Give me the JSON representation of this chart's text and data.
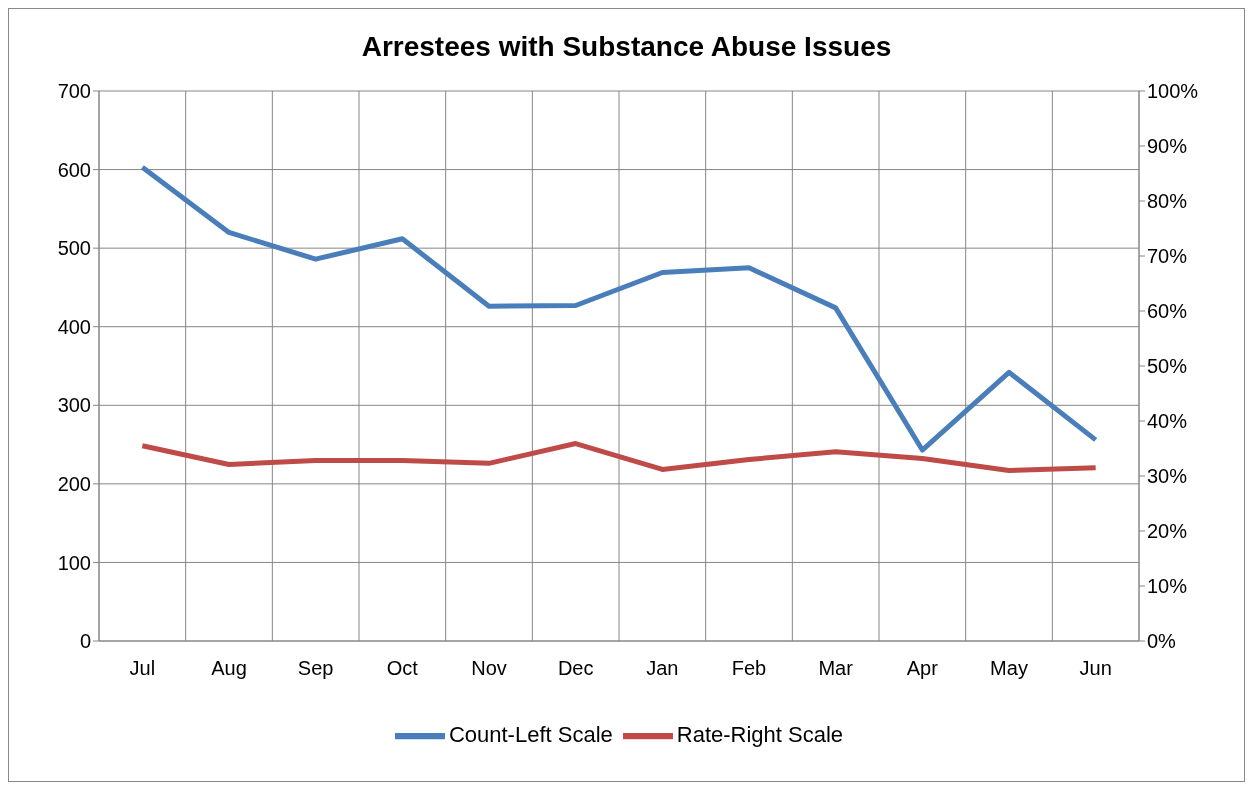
{
  "chart_data": {
    "type": "line",
    "title": "Arrestees with Substance Abuse Issues",
    "categories": [
      "Jul",
      "Aug",
      "Sep",
      "Oct",
      "Nov",
      "Dec",
      "Jan",
      "Feb",
      "Mar",
      "Apr",
      "May",
      "Jun"
    ],
    "series": [
      {
        "name": "Count-Left Scale",
        "color": "#4a7ebb",
        "values": [
          603,
          520,
          486,
          512,
          426,
          427,
          469,
          475,
          424,
          243,
          342,
          256
        ]
      },
      {
        "name": "Rate-Right Scale",
        "color": "#be4b48",
        "axis": "y2",
        "values": [
          35.5,
          32.1,
          32.8,
          32.8,
          32.3,
          35.9,
          31.2,
          33.0,
          34.4,
          33.2,
          31.0,
          31.5
        ]
      }
    ],
    "ylim": [
      0,
      700
    ],
    "yticks": [
      0,
      100,
      200,
      300,
      400,
      500,
      600,
      700
    ],
    "y2lim": [
      0,
      100
    ],
    "y2ticks": [
      {
        "value": 0,
        "label": "0%"
      },
      {
        "value": 10,
        "label": "10%"
      },
      {
        "value": 20,
        "label": "20%"
      },
      {
        "value": 30,
        "label": "30%"
      },
      {
        "value": 40,
        "label": "40%"
      },
      {
        "value": 50,
        "label": "50%"
      },
      {
        "value": 60,
        "label": "60%"
      },
      {
        "value": 70,
        "label": "70%"
      },
      {
        "value": 80,
        "label": "80%"
      },
      {
        "value": 90,
        "label": "90%"
      },
      {
        "value": 100,
        "label": "100%"
      }
    ],
    "grid": true,
    "legend": "bottom",
    "marker": "none",
    "line_style": "solid"
  }
}
